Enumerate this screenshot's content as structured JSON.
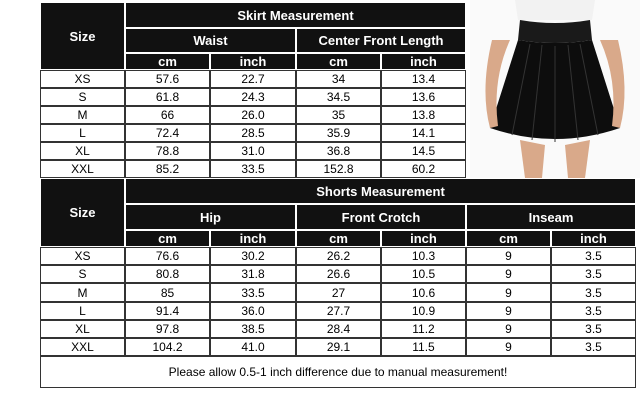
{
  "skirt_table": {
    "title": "Skirt Measurement",
    "size_header": "Size",
    "groups": [
      {
        "name": "Waist",
        "units": [
          "cm",
          "inch"
        ]
      },
      {
        "name": "Center Front Length",
        "units": [
          "cm",
          "inch"
        ]
      }
    ],
    "rows": [
      [
        "XS",
        "57.6",
        "22.7",
        "34",
        "13.4"
      ],
      [
        "S",
        "61.8",
        "24.3",
        "34.5",
        "13.6"
      ],
      [
        "M",
        "66",
        "26.0",
        "35",
        "13.8"
      ],
      [
        "L",
        "72.4",
        "28.5",
        "35.9",
        "14.1"
      ],
      [
        "XL",
        "78.8",
        "31.0",
        "36.8",
        "14.5"
      ],
      [
        "XXL",
        "85.2",
        "33.5",
        "152.8",
        "60.2"
      ]
    ]
  },
  "shorts_table": {
    "title": "Shorts Measurement",
    "size_header": "Size",
    "groups": [
      {
        "name": "Hip",
        "units": [
          "cm",
          "inch"
        ]
      },
      {
        "name": "Front Crotch",
        "units": [
          "cm",
          "inch"
        ]
      },
      {
        "name": "Inseam",
        "units": [
          "cm",
          "inch"
        ]
      }
    ],
    "rows": [
      [
        "XS",
        "76.6",
        "30.2",
        "26.2",
        "10.3",
        "9",
        "3.5"
      ],
      [
        "S",
        "80.8",
        "31.8",
        "26.6",
        "10.5",
        "9",
        "3.5"
      ],
      [
        "M",
        "85",
        "33.5",
        "27",
        "10.6",
        "9",
        "3.5"
      ],
      [
        "L",
        "91.4",
        "36.0",
        "27.7",
        "10.9",
        "9",
        "3.5"
      ],
      [
        "XL",
        "97.8",
        "38.5",
        "28.4",
        "11.2",
        "9",
        "3.5"
      ],
      [
        "XXL",
        "104.2",
        "41.0",
        "29.1",
        "11.5",
        "9",
        "3.5"
      ]
    ]
  },
  "note": "Please allow 0.5-1 inch difference due to manual measurement!"
}
